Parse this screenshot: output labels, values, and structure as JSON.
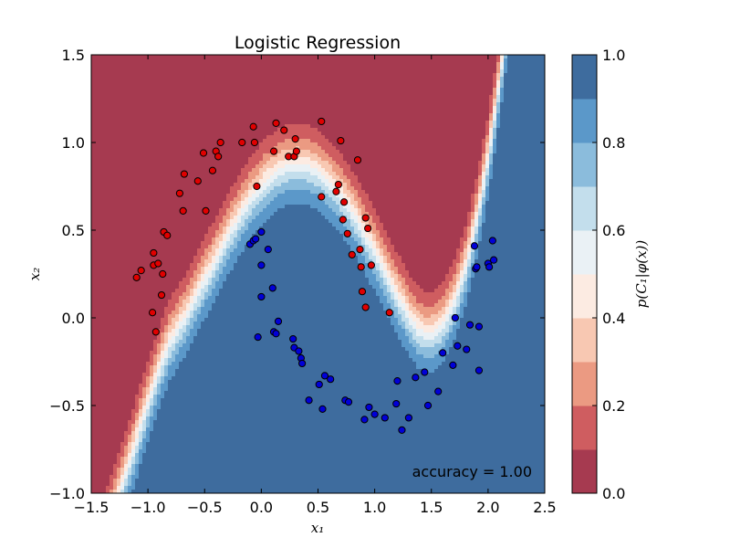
{
  "chart_data": {
    "type": "scatter",
    "title": "Logistic Regression",
    "xlabel": "x₁",
    "ylabel": "x₂",
    "xlim": [
      -1.5,
      2.5
    ],
    "ylim": [
      -1.0,
      1.5
    ],
    "xticks": [
      "−1.5",
      "−1.0",
      "−0.5",
      "0.0",
      "0.5",
      "1.0",
      "1.5",
      "2.0",
      "2.5"
    ],
    "yticks": [
      "−1.0",
      "−0.5",
      "0.0",
      "0.5",
      "1.0",
      "1.5"
    ],
    "annotation": "accuracy = 1.00",
    "background": "filled contour of predicted probability p(C₁|φ(x))",
    "colorbar": {
      "label": "p(C₁|φ(x))",
      "ticks": [
        "0.0",
        "0.2",
        "0.4",
        "0.6",
        "0.8",
        "1.0"
      ],
      "levels": [
        0.0,
        0.1,
        0.2,
        0.3,
        0.4,
        0.5,
        0.6,
        0.7,
        0.8,
        0.9,
        1.0
      ],
      "colors": [
        "#a63a50",
        "#cf5d60",
        "#eb9a82",
        "#f8c8b2",
        "#fcebe2",
        "#eaf1f5",
        "#c3deec",
        "#8bbcdc",
        "#5b98c9",
        "#3e6c9e"
      ]
    },
    "series": [
      {
        "color": "#e00000",
        "points": [
          [
            -1.1,
            0.23
          ],
          [
            -1.06,
            0.27
          ],
          [
            -0.96,
            0.03
          ],
          [
            -0.95,
            0.3
          ],
          [
            -0.95,
            0.37
          ],
          [
            -0.93,
            -0.08
          ],
          [
            -0.91,
            0.31
          ],
          [
            -0.88,
            0.13
          ],
          [
            -0.87,
            0.25
          ],
          [
            -0.86,
            0.49
          ],
          [
            -0.83,
            0.47
          ],
          [
            -0.72,
            0.71
          ],
          [
            -0.69,
            0.61
          ],
          [
            -0.68,
            0.82
          ],
          [
            -0.56,
            0.78
          ],
          [
            -0.51,
            0.94
          ],
          [
            -0.49,
            0.61
          ],
          [
            -0.43,
            0.84
          ],
          [
            -0.4,
            0.95
          ],
          [
            -0.38,
            0.92
          ],
          [
            -0.36,
            1.0
          ],
          [
            -0.17,
            1.0
          ],
          [
            -0.07,
            1.09
          ],
          [
            -0.06,
            1.0
          ],
          [
            -0.04,
            0.75
          ],
          [
            0.11,
            0.95
          ],
          [
            0.13,
            1.11
          ],
          [
            0.2,
            1.07
          ],
          [
            0.24,
            0.92
          ],
          [
            0.29,
            0.92
          ],
          [
            0.3,
            1.02
          ],
          [
            0.31,
            0.95
          ],
          [
            0.53,
            1.12
          ],
          [
            0.53,
            0.69
          ],
          [
            0.66,
            0.72
          ],
          [
            0.68,
            0.76
          ],
          [
            0.7,
            1.01
          ],
          [
            0.72,
            0.56
          ],
          [
            0.73,
            0.66
          ],
          [
            0.76,
            0.48
          ],
          [
            0.8,
            0.36
          ],
          [
            0.85,
            0.9
          ],
          [
            0.87,
            0.39
          ],
          [
            0.88,
            0.29
          ],
          [
            0.89,
            0.15
          ],
          [
            0.92,
            0.57
          ],
          [
            0.92,
            0.06
          ],
          [
            0.94,
            0.51
          ],
          [
            0.97,
            0.3
          ],
          [
            1.13,
            0.03
          ]
        ]
      },
      {
        "color": "#0000d8",
        "points": [
          [
            -0.1,
            0.42
          ],
          [
            -0.07,
            0.44
          ],
          [
            -0.05,
            0.45
          ],
          [
            -0.03,
            -0.11
          ],
          [
            0.0,
            0.49
          ],
          [
            0.0,
            0.3
          ],
          [
            0.0,
            0.12
          ],
          [
            0.06,
            0.39
          ],
          [
            0.1,
            0.17
          ],
          [
            0.11,
            -0.08
          ],
          [
            0.13,
            -0.09
          ],
          [
            0.15,
            -0.02
          ],
          [
            0.28,
            -0.12
          ],
          [
            0.29,
            -0.17
          ],
          [
            0.33,
            -0.19
          ],
          [
            0.35,
            -0.23
          ],
          [
            0.36,
            -0.26
          ],
          [
            0.42,
            -0.47
          ],
          [
            0.51,
            -0.38
          ],
          [
            0.54,
            -0.52
          ],
          [
            0.56,
            -0.33
          ],
          [
            0.61,
            -0.35
          ],
          [
            0.74,
            -0.47
          ],
          [
            0.77,
            -0.48
          ],
          [
            0.91,
            -0.58
          ],
          [
            0.95,
            -0.51
          ],
          [
            1.0,
            -0.55
          ],
          [
            1.09,
            -0.57
          ],
          [
            1.19,
            -0.49
          ],
          [
            1.2,
            -0.36
          ],
          [
            1.24,
            -0.64
          ],
          [
            1.3,
            -0.57
          ],
          [
            1.36,
            -0.34
          ],
          [
            1.44,
            -0.31
          ],
          [
            1.47,
            -0.5
          ],
          [
            1.56,
            -0.42
          ],
          [
            1.6,
            -0.2
          ],
          [
            1.69,
            -0.27
          ],
          [
            1.71,
            0.0
          ],
          [
            1.73,
            -0.16
          ],
          [
            1.81,
            -0.18
          ],
          [
            1.84,
            -0.04
          ],
          [
            1.88,
            0.41
          ],
          [
            1.89,
            0.28
          ],
          [
            1.9,
            0.29
          ],
          [
            1.92,
            -0.05
          ],
          [
            1.92,
            -0.3
          ],
          [
            2.0,
            0.31
          ],
          [
            2.01,
            0.29
          ],
          [
            2.05,
            0.33
          ],
          [
            2.04,
            0.44
          ]
        ]
      }
    ]
  }
}
